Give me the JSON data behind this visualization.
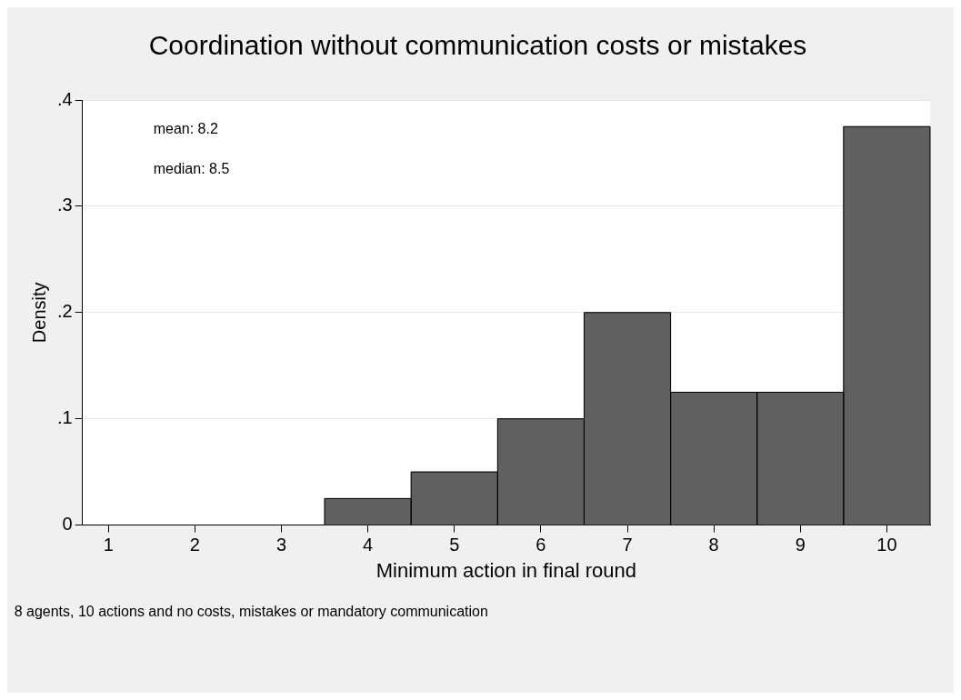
{
  "chart_data": {
    "type": "histogram",
    "title": "Coordination without communication costs or mistakes",
    "xlabel": "Minimum action in final round",
    "ylabel": "Density",
    "bins": [
      3.5,
      4.5,
      5.5,
      6.5,
      7.5,
      8.5,
      9.5,
      10.5
    ],
    "values": [
      0.025,
      0.05,
      0.1,
      0.2,
      0.125,
      0.125,
      0.375
    ],
    "color": "#606060",
    "xlim": [
      0.7,
      10.5
    ],
    "xticks": [
      1,
      2,
      3,
      4,
      5,
      6,
      7,
      8,
      9,
      10
    ],
    "ylim": [
      0,
      0.4
    ],
    "yticks": [
      0,
      {
        "value": 0.1,
        "label": ".1"
      },
      {
        "value": 0.2,
        "label": ".2"
      },
      {
        "value": 0.3,
        "label": ".3"
      },
      {
        "value": 0.4,
        "label": ".4"
      }
    ],
    "grid": "y",
    "legend": false,
    "annotations": [
      "mean: 8.2",
      "median: 8.5",
      "8 agents, 10 actions and no costs, mistakes or mandatory communication"
    ]
  }
}
